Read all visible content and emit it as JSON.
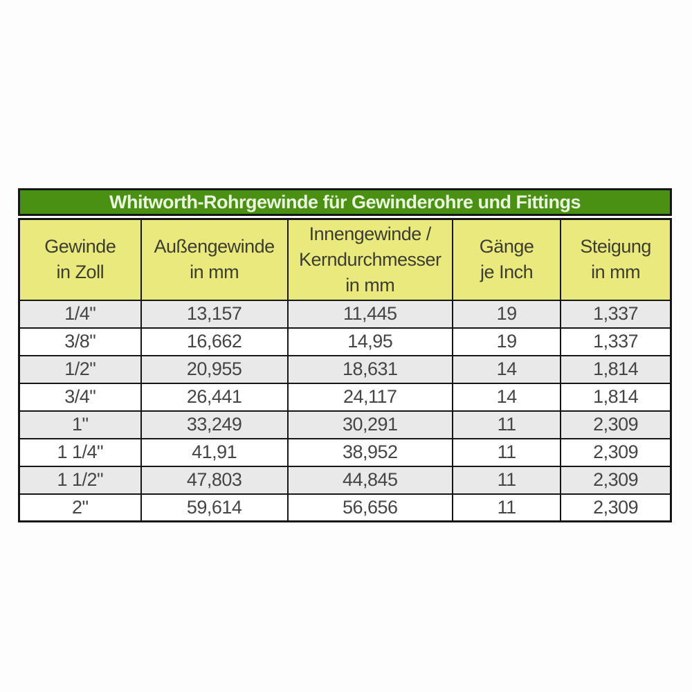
{
  "page_background": "#fdfdfd",
  "colors": {
    "title_bg": "#4a9113",
    "title_text": "#e9f5dd",
    "header_bg": "#e9e97d",
    "row_alt_bg": "#e9e9e9",
    "row_bg": "#ffffff",
    "border": "#151515",
    "text": "#454545"
  },
  "chart_data": {
    "type": "table",
    "title": "Whitworth-Rohrgewinde für Gewinderohre und Fittings",
    "columns": [
      "Gewinde in Zoll",
      "Außengewinde in mm",
      "Innengewinde / Kerndurchmesser in mm",
      "Gänge je Inch",
      "Steigung in mm"
    ],
    "column_lines": [
      [
        "Gewinde",
        "in Zoll"
      ],
      [
        "Außengewinde",
        "in mm"
      ],
      [
        "Innengewinde /",
        "Kerndurchmesser",
        "in mm"
      ],
      [
        "Gänge",
        "je Inch"
      ],
      [
        "Steigung",
        "in mm"
      ]
    ],
    "rows": [
      [
        "1/4\"",
        "13,157",
        "11,445",
        "19",
        "1,337"
      ],
      [
        "3/8\"",
        "16,662",
        "14,95",
        "19",
        "1,337"
      ],
      [
        "1/2\"",
        "20,955",
        "18,631",
        "14",
        "1,814"
      ],
      [
        "3/4\"",
        "26,441",
        "24,117",
        "14",
        "1,814"
      ],
      [
        "1\"",
        "33,249",
        "30,291",
        "11",
        "2,309"
      ],
      [
        "1 1/4\"",
        "41,91",
        "38,952",
        "11",
        "2,309"
      ],
      [
        "1 1/2\"",
        "47,803",
        "44,845",
        "11",
        "2,309"
      ],
      [
        "2\"",
        "59,614",
        "56,656",
        "11",
        "2,309"
      ]
    ]
  }
}
